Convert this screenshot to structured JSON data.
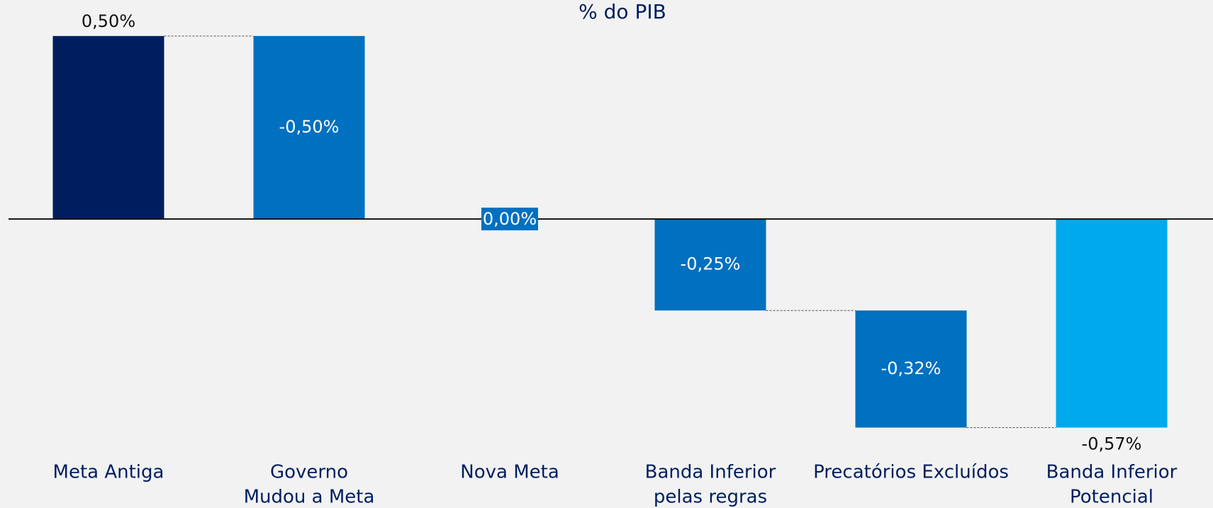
{
  "chart_data": {
    "type": "waterfall",
    "title": "% do PIB",
    "categories": [
      [
        "Meta Antiga"
      ],
      [
        "Governo",
        "Mudou a Meta"
      ],
      [
        "Nova Meta"
      ],
      [
        "Banda Inferior",
        "pelas regras"
      ],
      [
        "Precatórios Excluídos"
      ],
      [
        "Banda Inferior",
        "Potencial"
      ]
    ],
    "values": [
      0.5,
      -0.5,
      0,
      -0.25,
      -0.32,
      -0.57
    ],
    "value_labels": [
      "0,50%",
      "-0,50%",
      "0,00%",
      "-0,25%",
      "-0,32%",
      "-0,57%"
    ],
    "measures": [
      "total",
      "delta",
      "total",
      "delta",
      "delta",
      "total"
    ],
    "colors": [
      "#001e5e",
      "#0070c0",
      "#0070c0",
      "#0070c0",
      "#0070c0",
      "#00a9ec"
    ],
    "ylim": [
      -0.6,
      0.55
    ]
  }
}
